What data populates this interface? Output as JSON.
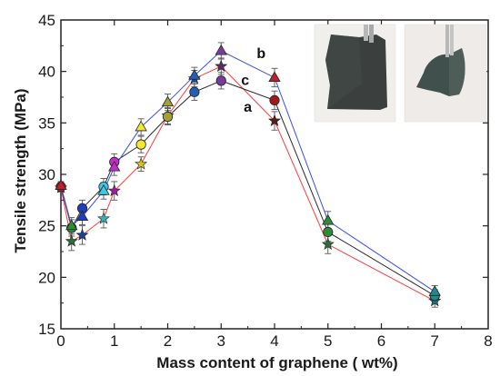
{
  "chart_data": {
    "type": "scatter",
    "xlabel": "Mass content of graphene ( wt%)",
    "ylabel": "Tensile strength (MPa)",
    "xlim": [
      0,
      8
    ],
    "ylim": [
      15,
      45
    ],
    "xticks": [
      "0",
      "1",
      "2",
      "3",
      "4",
      "5",
      "6",
      "7",
      "8"
    ],
    "yticks": [
      "15",
      "20",
      "25",
      "30",
      "35",
      "40",
      "45"
    ],
    "grid": false,
    "legend": "none",
    "series": [
      {
        "name": "a",
        "line_color": "#ff3b3b",
        "marker": "star",
        "points": [
          {
            "x": 0.0,
            "y": 28.7,
            "err": 0.4,
            "color": "#8b1a1a"
          },
          {
            "x": 0.2,
            "y": 23.5,
            "err": 0.9,
            "color": "#2e6b3a"
          },
          {
            "x": 0.4,
            "y": 24.1,
            "err": 0.9,
            "color": "#1f3fa0"
          },
          {
            "x": 0.8,
            "y": 25.7,
            "err": 0.9,
            "color": "#2fb5b5"
          },
          {
            "x": 1.0,
            "y": 28.4,
            "err": 0.9,
            "color": "#9b1fa6"
          },
          {
            "x": 1.5,
            "y": 31.0,
            "err": 0.7,
            "color": "#d4c21e"
          },
          {
            "x": 2.0,
            "y": 35.7,
            "err": 0.8,
            "color": "#7d7a2a"
          },
          {
            "x": 2.5,
            "y": 39.3,
            "err": 0.8,
            "color": "#1f4fa0"
          },
          {
            "x": 3.0,
            "y": 40.5,
            "err": 0.8,
            "color": "#5a2a6b"
          },
          {
            "x": 4.0,
            "y": 35.2,
            "err": 0.9,
            "color": "#5a1a1a"
          },
          {
            "x": 5.0,
            "y": 23.2,
            "err": 0.9,
            "color": "#2e6b3a"
          },
          {
            "x": 7.0,
            "y": 17.7,
            "err": 0.6,
            "color": "#1f6f7a"
          }
        ]
      },
      {
        "name": "c",
        "line_color": "#2a2a2a",
        "marker": "circle",
        "points": [
          {
            "x": 0.0,
            "y": 28.8,
            "err": 0.4,
            "color": "#c0202a"
          },
          {
            "x": 0.2,
            "y": 24.8,
            "err": 0.8,
            "color": "#2e8b3a"
          },
          {
            "x": 0.4,
            "y": 26.7,
            "err": 0.8,
            "color": "#1f3fc0"
          },
          {
            "x": 0.8,
            "y": 28.8,
            "err": 0.8,
            "color": "#3fc8e6"
          },
          {
            "x": 1.0,
            "y": 31.2,
            "err": 0.8,
            "color": "#c030c8"
          },
          {
            "x": 1.5,
            "y": 32.9,
            "err": 0.8,
            "color": "#f2e830"
          },
          {
            "x": 2.0,
            "y": 35.6,
            "err": 0.8,
            "color": "#a3a036"
          },
          {
            "x": 2.5,
            "y": 38.0,
            "err": 0.8,
            "color": "#1f5fb8"
          },
          {
            "x": 3.0,
            "y": 39.1,
            "err": 0.8,
            "color": "#7a3a9b"
          },
          {
            "x": 4.0,
            "y": 37.2,
            "err": 0.9,
            "color": "#a01a1a"
          },
          {
            "x": 5.0,
            "y": 24.4,
            "err": 0.9,
            "color": "#2e8b3a"
          },
          {
            "x": 7.0,
            "y": 18.2,
            "err": 0.6,
            "color": "#1f8a8a"
          }
        ]
      },
      {
        "name": "b",
        "line_color": "#3a4fe6",
        "marker": "triangle",
        "points": [
          {
            "x": 0.0,
            "y": 28.9,
            "err": 0.4,
            "color": "#c0202a"
          },
          {
            "x": 0.2,
            "y": 25.0,
            "err": 0.8,
            "color": "#2e8b3a"
          },
          {
            "x": 0.4,
            "y": 25.9,
            "err": 0.8,
            "color": "#1f3fc0"
          },
          {
            "x": 0.8,
            "y": 28.4,
            "err": 0.8,
            "color": "#3fc8e6"
          },
          {
            "x": 1.0,
            "y": 30.7,
            "err": 0.8,
            "color": "#c030c8"
          },
          {
            "x": 1.5,
            "y": 34.6,
            "err": 0.8,
            "color": "#f2e830"
          },
          {
            "x": 2.0,
            "y": 37.0,
            "err": 0.8,
            "color": "#a3a036"
          },
          {
            "x": 2.5,
            "y": 39.6,
            "err": 0.8,
            "color": "#1f5fb8"
          },
          {
            "x": 3.0,
            "y": 42.0,
            "err": 0.8,
            "color": "#7a3a9b"
          },
          {
            "x": 4.0,
            "y": 39.4,
            "err": 0.9,
            "color": "#c0202a"
          },
          {
            "x": 5.0,
            "y": 25.5,
            "err": 0.9,
            "color": "#2e8b3a"
          },
          {
            "x": 7.0,
            "y": 18.6,
            "err": 0.6,
            "color": "#1f8a8a"
          }
        ]
      }
    ],
    "annotations": [
      {
        "text": "b",
        "x": 3.75,
        "y": 41.3
      },
      {
        "text": "c",
        "x": 3.45,
        "y": 38.7
      },
      {
        "text": "a",
        "x": 3.5,
        "y": 36.1
      }
    ]
  },
  "photos": [
    {
      "name": "graphene-film-flat-photo",
      "background": "#f1efec",
      "film_color": "#3b403e"
    },
    {
      "name": "graphene-film-bent-photo",
      "background": "#eeebe8",
      "film_color": "#40504c"
    }
  ]
}
